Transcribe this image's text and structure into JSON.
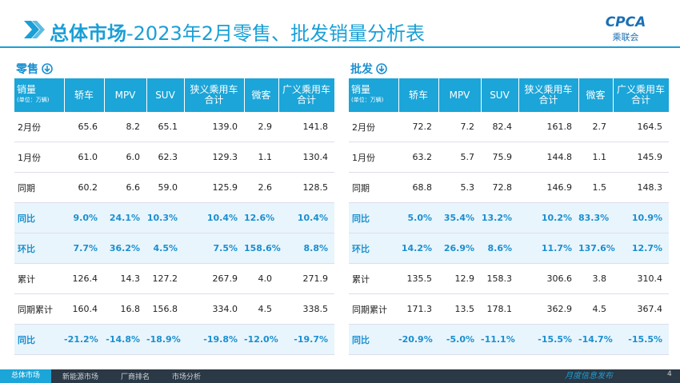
{
  "header": {
    "title_main": "总体市场",
    "title_rest": "-2023年2月零售、批发销量分析表",
    "logo": "CPCA",
    "logo_sub": "乘联会"
  },
  "tables": [
    {
      "title": "零售",
      "corner": "销量",
      "unit": "(单位：万辆)",
      "columns": [
        "轿车",
        "MPV",
        "SUV",
        "狭义乘用车\n合计",
        "微客",
        "广义乘用车\n合计"
      ],
      "rows": [
        [
          "2月份",
          "65.6",
          "8.2",
          "65.1",
          "139.0",
          "2.9",
          "141.8"
        ],
        [
          "1月份",
          "61.0",
          "6.0",
          "62.3",
          "129.3",
          "1.1",
          "130.4"
        ],
        [
          "同期",
          "60.2",
          "6.6",
          "59.0",
          "125.9",
          "2.6",
          "128.5"
        ],
        [
          "同比",
          "9.0%",
          "24.1%",
          "10.3%",
          "10.4%",
          "12.6%",
          "10.4%"
        ],
        [
          "环比",
          "7.7%",
          "36.2%",
          "4.5%",
          "7.5%",
          "158.6%",
          "8.8%"
        ],
        [
          "累计",
          "126.4",
          "14.3",
          "127.2",
          "267.9",
          "4.0",
          "271.9"
        ],
        [
          "同期累计",
          "160.4",
          "16.8",
          "156.8",
          "334.0",
          "4.5",
          "338.5"
        ],
        [
          "同比",
          "-21.2%",
          "-14.8%",
          "-18.9%",
          "-19.8%",
          "-12.0%",
          "-19.7%"
        ]
      ]
    },
    {
      "title": "批发",
      "corner": "销量",
      "unit": "(单位：万辆)",
      "columns": [
        "轿车",
        "MPV",
        "SUV",
        "狭义乘用车\n合计",
        "微客",
        "广义乘用车\n合计"
      ],
      "rows": [
        [
          "2月份",
          "72.2",
          "7.2",
          "82.4",
          "161.8",
          "2.7",
          "164.5"
        ],
        [
          "1月份",
          "63.2",
          "5.7",
          "75.9",
          "144.8",
          "1.1",
          "145.9"
        ],
        [
          "同期",
          "68.8",
          "5.3",
          "72.8",
          "146.9",
          "1.5",
          "148.3"
        ],
        [
          "同比",
          "5.0%",
          "35.4%",
          "13.2%",
          "10.2%",
          "83.3%",
          "10.9%"
        ],
        [
          "环比",
          "14.2%",
          "26.9%",
          "8.6%",
          "11.7%",
          "137.6%",
          "12.7%"
        ],
        [
          "累计",
          "135.5",
          "12.9",
          "158.3",
          "306.6",
          "3.8",
          "310.4"
        ],
        [
          "同期累计",
          "171.3",
          "13.5",
          "178.1",
          "362.9",
          "4.5",
          "367.4"
        ],
        [
          "同比",
          "-20.9%",
          "-5.0%",
          "-11.1%",
          "-15.5%",
          "-14.7%",
          "-15.5%"
        ]
      ]
    }
  ],
  "footer": {
    "tabs": [
      "总体市场",
      "新能源市场",
      "厂商排名",
      "市场分析"
    ],
    "slogan": "月度信息发布",
    "page": "4"
  }
}
